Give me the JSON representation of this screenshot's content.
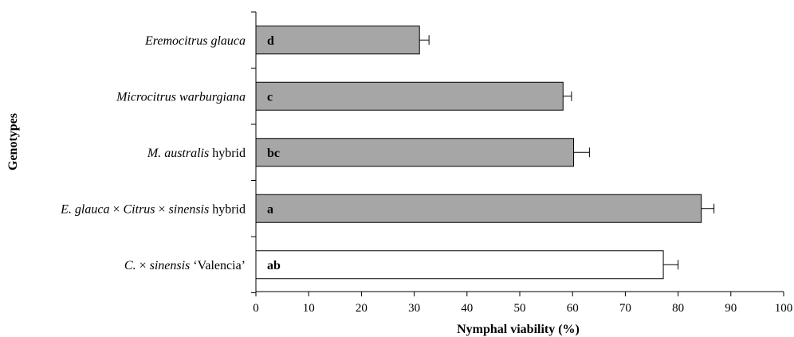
{
  "chart_data": {
    "type": "bar",
    "orientation": "horizontal",
    "title": "",
    "xlabel": "Nymphal viability (%)",
    "ylabel": "Genotypes",
    "xlim": [
      0,
      100
    ],
    "x_ticks": [
      0,
      10,
      20,
      30,
      40,
      50,
      60,
      70,
      80,
      90,
      100
    ],
    "grid": false,
    "legend": "none",
    "categories": [
      {
        "parts": [
          {
            "text": "Eremocitrus glauca",
            "italic": true
          }
        ]
      },
      {
        "parts": [
          {
            "text": "Microcitrus warburgiana",
            "italic": true
          }
        ]
      },
      {
        "parts": [
          {
            "text": "M. australis",
            "italic": true
          },
          {
            "text": " hybrid",
            "italic": false
          }
        ]
      },
      {
        "parts": [
          {
            "text": "E. glauca",
            "italic": true
          },
          {
            "text": " × ",
            "italic": false
          },
          {
            "text": "Citrus",
            "italic": true
          },
          {
            "text": " × ",
            "italic": false
          },
          {
            "text": "sinensis",
            "italic": true
          },
          {
            "text": " hybrid",
            "italic": false
          }
        ]
      },
      {
        "parts": [
          {
            "text": "C.",
            "italic": true
          },
          {
            "text": " × ",
            "italic": false
          },
          {
            "text": "sinensis",
            "italic": true
          },
          {
            "text": " ‘Valencia’",
            "italic": false
          }
        ]
      }
    ],
    "values": [
      31,
      58.2,
      60.2,
      84.4,
      77.2
    ],
    "errors": [
      1.8,
      1.6,
      3,
      2.4,
      2.8
    ],
    "significance_labels": [
      "d",
      "c",
      "bc",
      "a",
      "ab"
    ],
    "bar_colors": [
      "#a6a6a6",
      "#a6a6a6",
      "#a6a6a6",
      "#a6a6a6",
      "#ffffff"
    ]
  }
}
